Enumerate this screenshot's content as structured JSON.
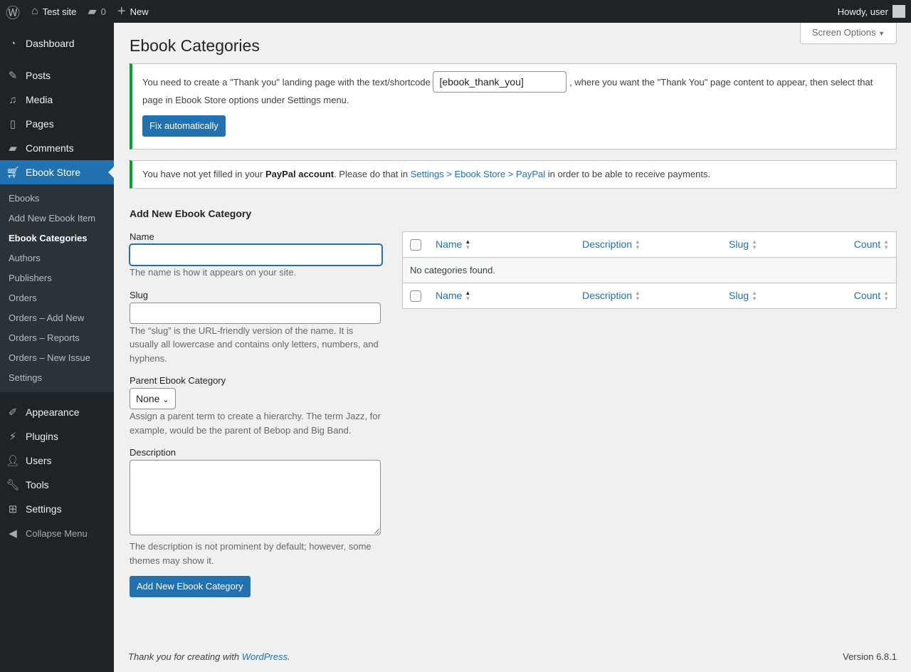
{
  "adminbar": {
    "site": "Test site",
    "comments": "0",
    "new": "New",
    "howdy": "Howdy, user"
  },
  "menu": {
    "dashboard": "Dashboard",
    "posts": "Posts",
    "media": "Media",
    "pages": "Pages",
    "comments": "Comments",
    "ebook_store": "Ebook Store",
    "appearance": "Appearance",
    "plugins": "Plugins",
    "users": "Users",
    "tools": "Tools",
    "settings": "Settings",
    "collapse": "Collapse Menu"
  },
  "submenu": [
    "Ebooks",
    "Add New Ebook Item",
    "Ebook Categories",
    "Authors",
    "Publishers",
    "Orders",
    "Orders – Add New",
    "Orders – Reports",
    "Orders – New Issue",
    "Settings"
  ],
  "page": {
    "title": "Ebook Categories",
    "screen_options": "Screen Options"
  },
  "notice1": {
    "before": "You need to create a \"Thank you\" landing page with the text/shortcode",
    "shortcode": "[ebook_thank_you]",
    "after": ", where you want the \"Thank You\" page content to appear, then select that page in Ebook Store options under Settings menu.",
    "button": "Fix automatically"
  },
  "notice2": {
    "before": "You have not yet filled in your ",
    "bold": "PayPal account",
    "mid": ". Please do that in ",
    "link": "Settings > Ebook Store > PayPal",
    "after": " in order to be able to receive payments."
  },
  "form": {
    "heading": "Add New Ebook Category",
    "name_label": "Name",
    "name_value": "",
    "name_help": "The name is how it appears on your site.",
    "slug_label": "Slug",
    "slug_value": "",
    "slug_help": "The “slug” is the URL-friendly version of the name. It is usually all lowercase and contains only letters, numbers, and hyphens.",
    "parent_label": "Parent Ebook Category",
    "parent_value": "None",
    "parent_help": "Assign a parent term to create a hierarchy. The term Jazz, for example, would be the parent of Bebop and Big Band.",
    "desc_label": "Description",
    "desc_help": "The description is not prominent by default; however, some themes may show it.",
    "submit": "Add New Ebook Category"
  },
  "table": {
    "columns": [
      "Name",
      "Description",
      "Slug",
      "Count"
    ],
    "empty": "No categories found."
  },
  "footer": {
    "thanks": "Thank you for creating with ",
    "link": "WordPress",
    "period": ".",
    "version": "Version 6.8.1"
  }
}
